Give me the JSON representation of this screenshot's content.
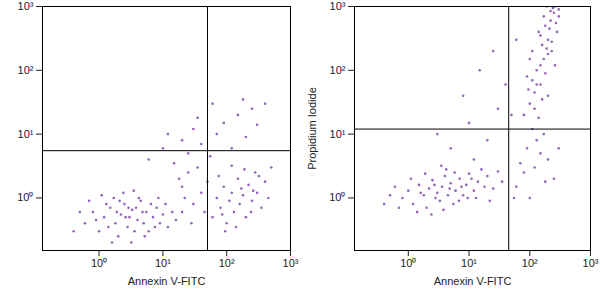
{
  "chart_data": [
    {
      "type": "scatter",
      "log": true,
      "color": "#7030a0",
      "marker": "dot",
      "x_label": "Annexin V-FITC",
      "xlim": [
        0.13,
        1000
      ],
      "ylim": [
        0.15,
        1000
      ],
      "xticks": [
        {
          "value": 1,
          "label": "10⁰"
        },
        {
          "value": 10,
          "label": "10¹"
        },
        {
          "value": 100,
          "label": "10²"
        },
        {
          "value": 1000,
          "label": "10³"
        }
      ],
      "yticks": [
        {
          "value": 1,
          "label": "10⁰"
        },
        {
          "value": 10,
          "label": "10¹"
        },
        {
          "value": 100,
          "label": "10²"
        },
        {
          "value": 1000,
          "label": "10³"
        }
      ],
      "quadrant": {
        "x": 50,
        "y": 5.5
      },
      "x": [
        0.6,
        0.8,
        1,
        1.2,
        1.5,
        1.8,
        2,
        2.2,
        2.5,
        2.8,
        3,
        3.3,
        3.6,
        4,
        4.5,
        5,
        5.5,
        6,
        7,
        8,
        9,
        10,
        12,
        14,
        0.7,
        1.1,
        1.6,
        2.4,
        3.2,
        4.2,
        0.9,
        1.3,
        1.9,
        2.6,
        3.8,
        4.8,
        6.5,
        7.5,
        0.5,
        0.4,
        1.4,
        2.1,
        3.5,
        5.2,
        8.5,
        11,
        16,
        20,
        2.9,
        1.7,
        60,
        70,
        80,
        90,
        100,
        110,
        120,
        130,
        150,
        160,
        180,
        200,
        220,
        250,
        280,
        300,
        350,
        400,
        450,
        500,
        75,
        95,
        140,
        170,
        240,
        320,
        190,
        120,
        85,
        260,
        6,
        10,
        15,
        20,
        25,
        30,
        40,
        55,
        70,
        90,
        120,
        150,
        200,
        250,
        300,
        12,
        35,
        60,
        180,
        400,
        20,
        30,
        40,
        25,
        45,
        35,
        18,
        50,
        28,
        22
      ],
      "values": [
        0.4,
        0.6,
        0.3,
        0.5,
        0.7,
        0.4,
        0.25,
        0.55,
        0.8,
        0.35,
        0.5,
        0.65,
        0.3,
        0.45,
        0.9,
        0.4,
        0.6,
        0.3,
        0.5,
        0.7,
        0.4,
        0.55,
        0.35,
        0.6,
        0.9,
        1.1,
        0.2,
        1.2,
        0.2,
        1,
        0.45,
        0.8,
        0.6,
        0.5,
        0.7,
        0.6,
        0.8,
        0.35,
        0.6,
        0.3,
        0.35,
        0.9,
        1.3,
        0.25,
        1,
        0.8,
        0.45,
        0.6,
        0.7,
        1,
        0.5,
        1,
        0.7,
        1.5,
        0.4,
        0.9,
        1.2,
        0.6,
        2,
        0.8,
        1.1,
        0.5,
        1.6,
        0.9,
        2.5,
        1.2,
        0.7,
        1.8,
        1,
        3,
        2.2,
        0.3,
        0.35,
        1.4,
        0.6,
        2.2,
        2.8,
        3.2,
        0.55,
        1.3,
        4,
        6,
        3.5,
        8,
        5,
        12,
        7,
        4.5,
        10,
        15,
        6,
        20,
        9,
        25,
        14,
        10,
        18,
        30,
        35,
        30,
        1.5,
        0.8,
        1.2,
        2.5,
        0.6,
        3,
        2,
        1.8,
        0.4,
        1
      ]
    },
    {
      "type": "scatter",
      "log": true,
      "color": "#7030a0",
      "marker": "dot",
      "x_label": "Annexin V-FITC",
      "y_label": "Propidium Iodide",
      "xlim": [
        0.13,
        1000
      ],
      "ylim": [
        0.15,
        1000
      ],
      "xticks": [
        {
          "value": 1,
          "label": "10⁰"
        },
        {
          "value": 10,
          "label": "10¹"
        },
        {
          "value": 100,
          "label": "10²"
        },
        {
          "value": 1000,
          "label": "10³"
        }
      ],
      "yticks": [
        {
          "value": 1,
          "label": "10⁰"
        },
        {
          "value": 10,
          "label": "10¹"
        },
        {
          "value": 100,
          "label": "10²"
        },
        {
          "value": 1000,
          "label": "10³"
        }
      ],
      "quadrant": {
        "x": 45,
        "y": 12
      },
      "x": [
        0.8,
        1,
        1.2,
        1.5,
        1.8,
        2,
        2.2,
        2.5,
        2.8,
        3,
        3.3,
        3.6,
        4,
        4.5,
        5,
        5.5,
        6,
        7,
        8,
        9,
        10,
        12,
        14,
        16,
        0.6,
        0.7,
        1.1,
        1.4,
        1.9,
        2.4,
        3.8,
        4.2,
        5.8,
        6.8,
        7.5,
        9.5,
        11,
        13,
        18,
        20,
        25,
        30,
        2.7,
        3.5,
        1.6,
        4.8,
        0.5,
        0.4,
        22,
        35,
        80,
        100,
        120,
        150,
        90,
        130,
        170,
        110,
        160,
        200,
        140,
        180,
        220,
        250,
        190,
        300,
        120,
        200,
        260,
        230,
        100,
        150,
        210,
        170,
        240,
        280,
        130,
        180,
        95,
        160,
        200,
        230,
        270,
        150,
        110,
        190,
        260,
        300,
        220,
        140,
        60,
        80,
        100,
        120,
        150,
        90,
        200,
        130,
        70,
        250,
        110,
        170,
        55,
        300,
        180,
        5,
        10,
        20,
        30,
        8,
        40,
        15,
        50,
        3,
        25,
        60,
        12
      ],
      "values": [
        1,
        1.3,
        0.8,
        1.6,
        1.1,
        0.7,
        1.4,
        1.9,
        1,
        1.2,
        0.9,
        1.5,
        2.2,
        1.1,
        1.7,
        0.8,
        1.3,
        2,
        1.1,
        1.6,
        2.4,
        1.3,
        1.8,
        2.8,
        1.5,
        0.7,
        2,
        0.6,
        2.4,
        0.55,
        0.65,
        2.8,
        2.5,
        0.9,
        1.5,
        1,
        2,
        1,
        1.5,
        2.2,
        1.4,
        2.6,
        1.6,
        3.2,
        1.2,
        1.4,
        1.1,
        0.8,
        0.9,
        1.8,
        20,
        30,
        45,
        60,
        80,
        100,
        150,
        200,
        250,
        300,
        400,
        500,
        600,
        800,
        1000,
        700,
        25,
        40,
        120,
        200,
        150,
        350,
        450,
        700,
        950,
        400,
        60,
        90,
        50,
        35,
        180,
        280,
        550,
        120,
        70,
        220,
        1000,
        900,
        850,
        18,
        1.5,
        2.5,
        1,
        3,
        5,
        6,
        4,
        8,
        3.5,
        2,
        12,
        10,
        1,
        6,
        1.8,
        6,
        15,
        8,
        25,
        40,
        60,
        100,
        20,
        10,
        200,
        300,
        4
      ]
    }
  ]
}
